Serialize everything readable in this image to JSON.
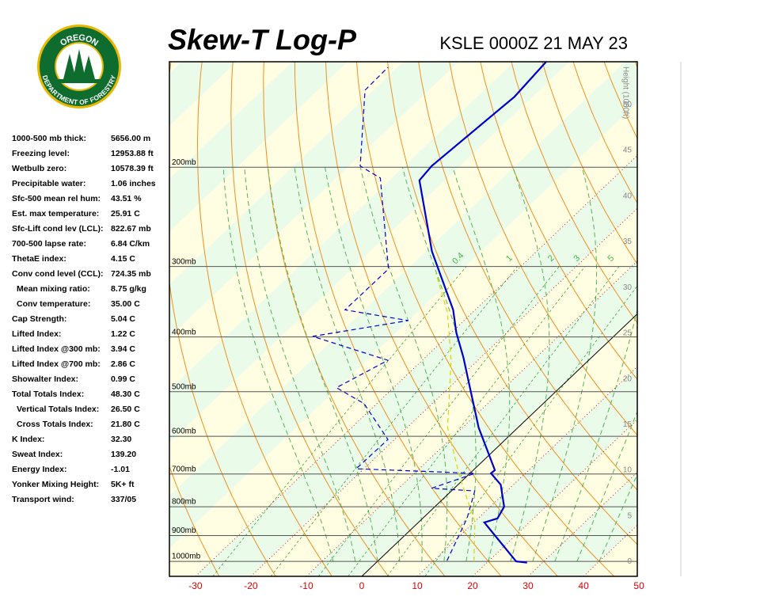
{
  "logo": {
    "top": "OREGON",
    "bottom": "DEPARTMENT OF FORESTRY"
  },
  "header": {
    "title": "Skew-T Log-P",
    "station": "KSLE 0000Z 21 MAY 23"
  },
  "indices": {
    "rows": [
      [
        "1000-500 mb thick:",
        "5656.00 m"
      ],
      [
        "Freezing level:",
        "12953.88 ft"
      ],
      [
        "Wetbulb zero:",
        "10578.39 ft"
      ],
      [
        "Precipitable water:",
        "1.06 inches"
      ],
      [
        "Sfc-500 mean rel hum:",
        "43.51 %"
      ],
      [
        "Est. max temperature:",
        "25.91 C"
      ],
      [
        "Sfc-Lift cond lev (LCL):",
        "822.67 mb"
      ],
      [
        "700-500 lapse rate:",
        "6.84 C/km"
      ],
      [
        "ThetaE index:",
        "4.15 C"
      ],
      [
        "Conv cond level (CCL):",
        "724.35 mb"
      ],
      [
        "Mean mixing ratio:",
        "8.75 g/kg"
      ],
      [
        "Conv temperature:",
        "35.00 C"
      ],
      [
        "Cap Strength:",
        "5.04 C"
      ],
      [
        "Lifted Index:",
        "1.22 C"
      ],
      [
        "Lifted Index @300 mb:",
        "3.94 C"
      ],
      [
        "Lifted Index @700 mb:",
        "2.86 C"
      ],
      [
        "Showalter Index:",
        "0.99 C"
      ],
      [
        "Total Totals Index:",
        "48.30 C"
      ],
      [
        "Vertical Totals Index:",
        "26.50 C"
      ],
      [
        "Cross Totals Index:",
        "21.80 C"
      ],
      [
        "K Index:",
        "32.30"
      ],
      [
        "Sweat Index:",
        "139.20"
      ],
      [
        "Energy Index:",
        "-1.01"
      ],
      [
        "Yonker Mixing Height:",
        "5K+ ft"
      ],
      [
        "Transport wind:",
        "337/05"
      ]
    ]
  },
  "chart_data": {
    "type": "skewt",
    "log_y": true,
    "xlim": [
      -34.7,
      49.7
    ],
    "ylim": [
      1063,
      130
    ],
    "xticks": [
      -30,
      -20,
      -10,
      0,
      10,
      20,
      30,
      40,
      50
    ],
    "yticks": [
      {
        "value": 1000,
        "label": "1000mb"
      },
      {
        "value": 900,
        "label": "900mb"
      },
      {
        "value": 800,
        "label": "800mb"
      },
      {
        "value": 700,
        "label": "700mb"
      },
      {
        "value": 600,
        "label": "600mb"
      },
      {
        "value": 500,
        "label": "500mb"
      },
      {
        "value": 400,
        "label": "400mb"
      },
      {
        "value": 300,
        "label": "300mb"
      },
      {
        "value": 200,
        "label": "200mb"
      }
    ],
    "y2label": "Height (1000ft)",
    "y2lim": [
      -1.6,
      54.7
    ],
    "y2ticks": [
      0,
      5,
      10,
      15,
      20,
      25,
      30,
      35,
      40,
      45,
      50
    ],
    "mixing_ratio_labels": [
      "0.4",
      "1",
      "2",
      "3",
      "5",
      "8"
    ],
    "series": [
      {
        "color": "#0000cc",
        "dash": false,
        "y": [
          1005,
          1000,
          853,
          839,
          800,
          731,
          698,
          689,
          579,
          469,
          435,
          393,
          358,
          282,
          211,
          199,
          150,
          130
        ],
        "values": [
          27.2,
          25.0,
          11.9,
          13.5,
          12.5,
          7.7,
          3.8,
          3.9,
          -7.1,
          -18.9,
          -23.1,
          -29.1,
          -34.0,
          -48.9,
          -64.6,
          -65.1,
          -63.3,
          -64.2
        ]
      },
      {
        "color": "#0000cc",
        "dash": true,
        "y": [
          997,
          839,
          750,
          742,
          698,
          685,
          608,
          525,
          492,
          440,
          399,
          374,
          358,
          303,
          209,
          199,
          146,
          133
        ],
        "values": [
          12.4,
          8.0,
          4.2,
          -4.1,
          0.9,
          -21.4,
          -21.2,
          -32.3,
          -40.3,
          -36.2,
          -54.3,
          -40.1,
          -53.5,
          -53.4,
          -72.1,
          -78.0,
          -91.5,
          -91.7
        ]
      },
      {
        "color": "#d8d800",
        "dash": true,
        "y": [
          1000,
          853,
          703,
          579,
          440,
          362,
          308
        ],
        "values": [
          17.4,
          10.2,
          -1.6,
          -12.7,
          -24.8,
          -34.5,
          -44.1
        ]
      }
    ]
  }
}
